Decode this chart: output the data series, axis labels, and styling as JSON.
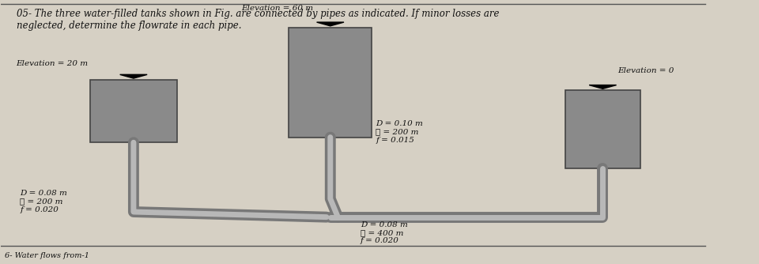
{
  "title_text": "05- The three water-filled tanks shown in Fig. are connected by pipes as indicated. If minor losses are\nneglected, determine the flowrate in each pipe.",
  "bg_color": "#d6d0c4",
  "tank_color": "#8a8a8a",
  "pipe_color": "#a0a0a0",
  "text_color": "#111111",
  "tank1_label": "Elevation = 20 m",
  "tank2_label": "Elevation = 60 m",
  "tank3_label": "Elevation = 0",
  "pipe1_label": "D = 0.10 m\nℓ = 200 m\nf = 0.015",
  "pipe2_label": "D = 0.08 m\nℓ = 200 m\nf = 0.020",
  "pipe3_label": "D = 0.08 m\nℓ = 400 m\nf = 0.020",
  "bottom_text": "6- Water flows from-1"
}
